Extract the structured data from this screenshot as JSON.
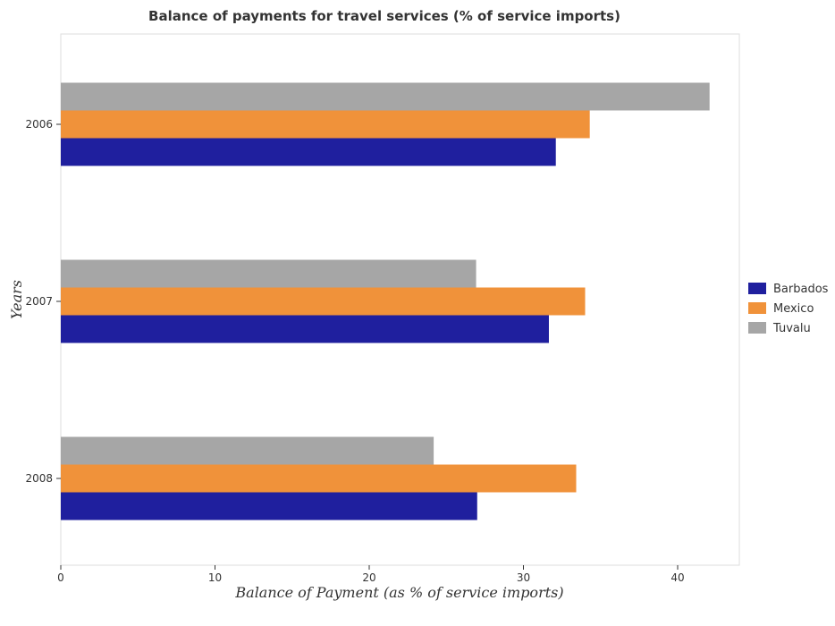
{
  "chart_data": {
    "type": "bar",
    "orientation": "horizontal",
    "title": "Balance of payments for travel services (% of service imports)",
    "xlabel": "Balance of Payment (as % of service imports)",
    "ylabel": "Years",
    "categories": [
      "2006",
      "2007",
      "2008"
    ],
    "xlim": [
      0,
      44
    ],
    "xticks": [
      0,
      10,
      20,
      30,
      40
    ],
    "grid": false,
    "legend_position": "right",
    "series": [
      {
        "name": "Barbados",
        "color": "#1f1f9e",
        "values": [
          32.1,
          31.65,
          27.0
        ]
      },
      {
        "name": "Mexico",
        "color": "#f0923a",
        "values": [
          34.3,
          34.0,
          33.42
        ]
      },
      {
        "name": "Tuvalu",
        "color": "#a6a6a6",
        "values": [
          42.07,
          26.93,
          24.18
        ]
      }
    ]
  }
}
